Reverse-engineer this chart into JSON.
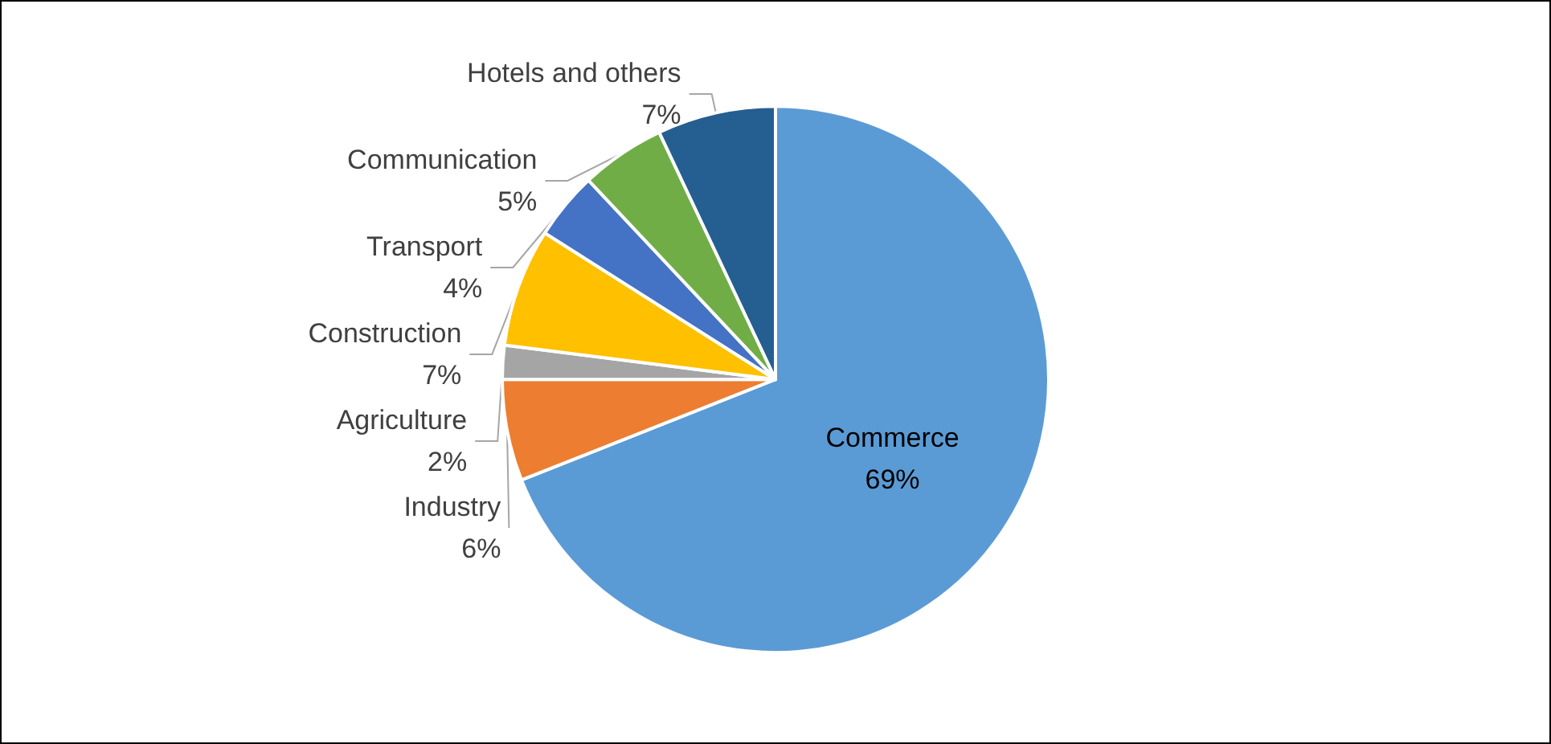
{
  "chart_data": {
    "type": "pie",
    "categories": [
      "Commerce",
      "Industry",
      "Agriculture",
      "Construction",
      "Transport",
      "Communication",
      "Hotels and others"
    ],
    "values": [
      69,
      6,
      2,
      7,
      4,
      5,
      7
    ],
    "colors": [
      "#5b9bd5",
      "#ed7d31",
      "#a5a5a5",
      "#ffc000",
      "#4472c4",
      "#70ad47",
      "#255e91"
    ],
    "value_labels": [
      "69%",
      "6%",
      "2%",
      "7%",
      "4%",
      "5%",
      "7%"
    ],
    "legend": false
  }
}
